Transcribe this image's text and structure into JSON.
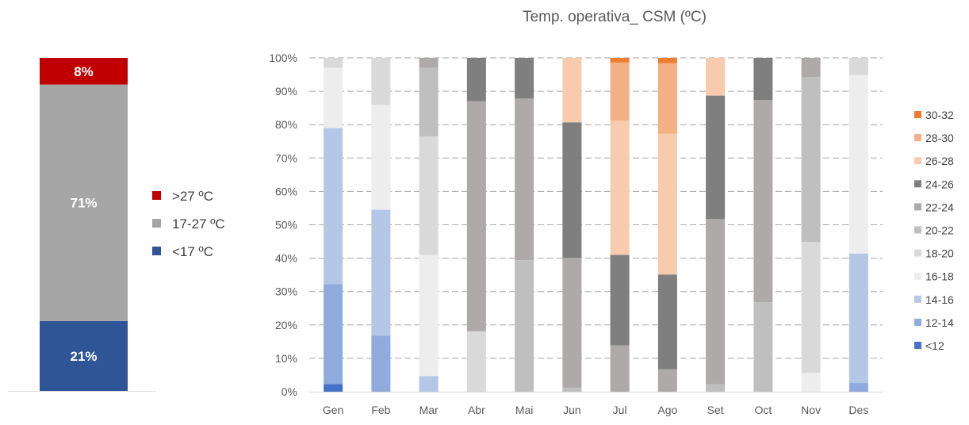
{
  "chart_data": [
    {
      "type": "bar",
      "stacked": true,
      "categories": [
        ""
      ],
      "series": [
        {
          "name": "<17 ºC",
          "values": [
            21
          ],
          "label": "21%",
          "color": "#2F5597"
        },
        {
          "name": "17-27 ºC",
          "values": [
            71
          ],
          "label": "71%",
          "color": "#A6A6A6"
        },
        {
          "name": ">27 ºC",
          "values": [
            8
          ],
          "label": "8%",
          "color": "#C00000"
        }
      ],
      "legend": ">27 ºC, 17-27 ºC, <17 ºC",
      "legend_position": "right",
      "ylim": [
        0,
        100
      ],
      "grid": false
    },
    {
      "type": "bar",
      "stacked": true,
      "title": "Temp. operativa_ CSM (ºC)",
      "categories": [
        "Gen",
        "Feb",
        "Mar",
        "Abr",
        "Mai",
        "Jun",
        "Jul",
        "Ago",
        "Set",
        "Oct",
        "Nov",
        "Des"
      ],
      "ylim": [
        0,
        100
      ],
      "yticks": [
        "0%",
        "10%",
        "20%",
        "30%",
        "40%",
        "50%",
        "60%",
        "70%",
        "80%",
        "90%",
        "100%"
      ],
      "grid": true,
      "legend_position": "right",
      "series": [
        {
          "name": "<12",
          "color": "#4472C4",
          "values": [
            2.3,
            0,
            0,
            0,
            0,
            0,
            0,
            0,
            0,
            0,
            0,
            0
          ]
        },
        {
          "name": "12-14",
          "color": "#8FAADC",
          "values": [
            29.9,
            16.8,
            0,
            0,
            0,
            0,
            0,
            0,
            0,
            0,
            0,
            2.6
          ]
        },
        {
          "name": "14-16",
          "color": "#B4C7E7",
          "values": [
            46.8,
            37.7,
            4.7,
            0,
            0,
            0,
            0,
            0,
            0,
            0,
            0,
            38.8
          ]
        },
        {
          "name": "16-18",
          "color": "#EDEDED",
          "values": [
            18.0,
            31.4,
            36.3,
            0,
            0,
            0,
            0,
            0,
            0,
            0,
            5.7,
            53.5
          ]
        },
        {
          "name": "18-20",
          "color": "#D9D9D9",
          "values": [
            3.0,
            14.1,
            35.5,
            18.1,
            0,
            0,
            0,
            0,
            0,
            0,
            39.2,
            5.1
          ]
        },
        {
          "name": "20-22",
          "color": "#BFBFBF",
          "values": [
            0,
            0,
            20.5,
            0,
            39.4,
            1.2,
            0,
            0,
            2.2,
            26.8,
            49.4,
            0
          ]
        },
        {
          "name": "22-24",
          "color": "#AEAAAA",
          "values": [
            0,
            0,
            3.0,
            68.9,
            48.4,
            38.9,
            13.9,
            6.7,
            49.5,
            60.6,
            5.7,
            0
          ]
        },
        {
          "name": "24-26",
          "color": "#7F7F7F",
          "values": [
            0,
            0,
            0,
            13.0,
            12.2,
            40.6,
            27.1,
            28.4,
            37.0,
            12.6,
            0,
            0
          ]
        },
        {
          "name": "26-28",
          "color": "#F8CBAD",
          "values": [
            0,
            0,
            0,
            0,
            0,
            19.3,
            40.2,
            42.2,
            11.3,
            0,
            0,
            0
          ]
        },
        {
          "name": "28-30",
          "color": "#F4B183",
          "values": [
            0,
            0,
            0,
            0,
            0,
            0,
            17.4,
            21.1,
            0,
            0,
            0,
            0
          ]
        },
        {
          "name": "30-32",
          "color": "#ED7D31",
          "values": [
            0,
            0,
            0,
            0,
            0,
            0,
            1.4,
            1.6,
            0,
            0,
            0,
            0
          ]
        }
      ]
    }
  ]
}
